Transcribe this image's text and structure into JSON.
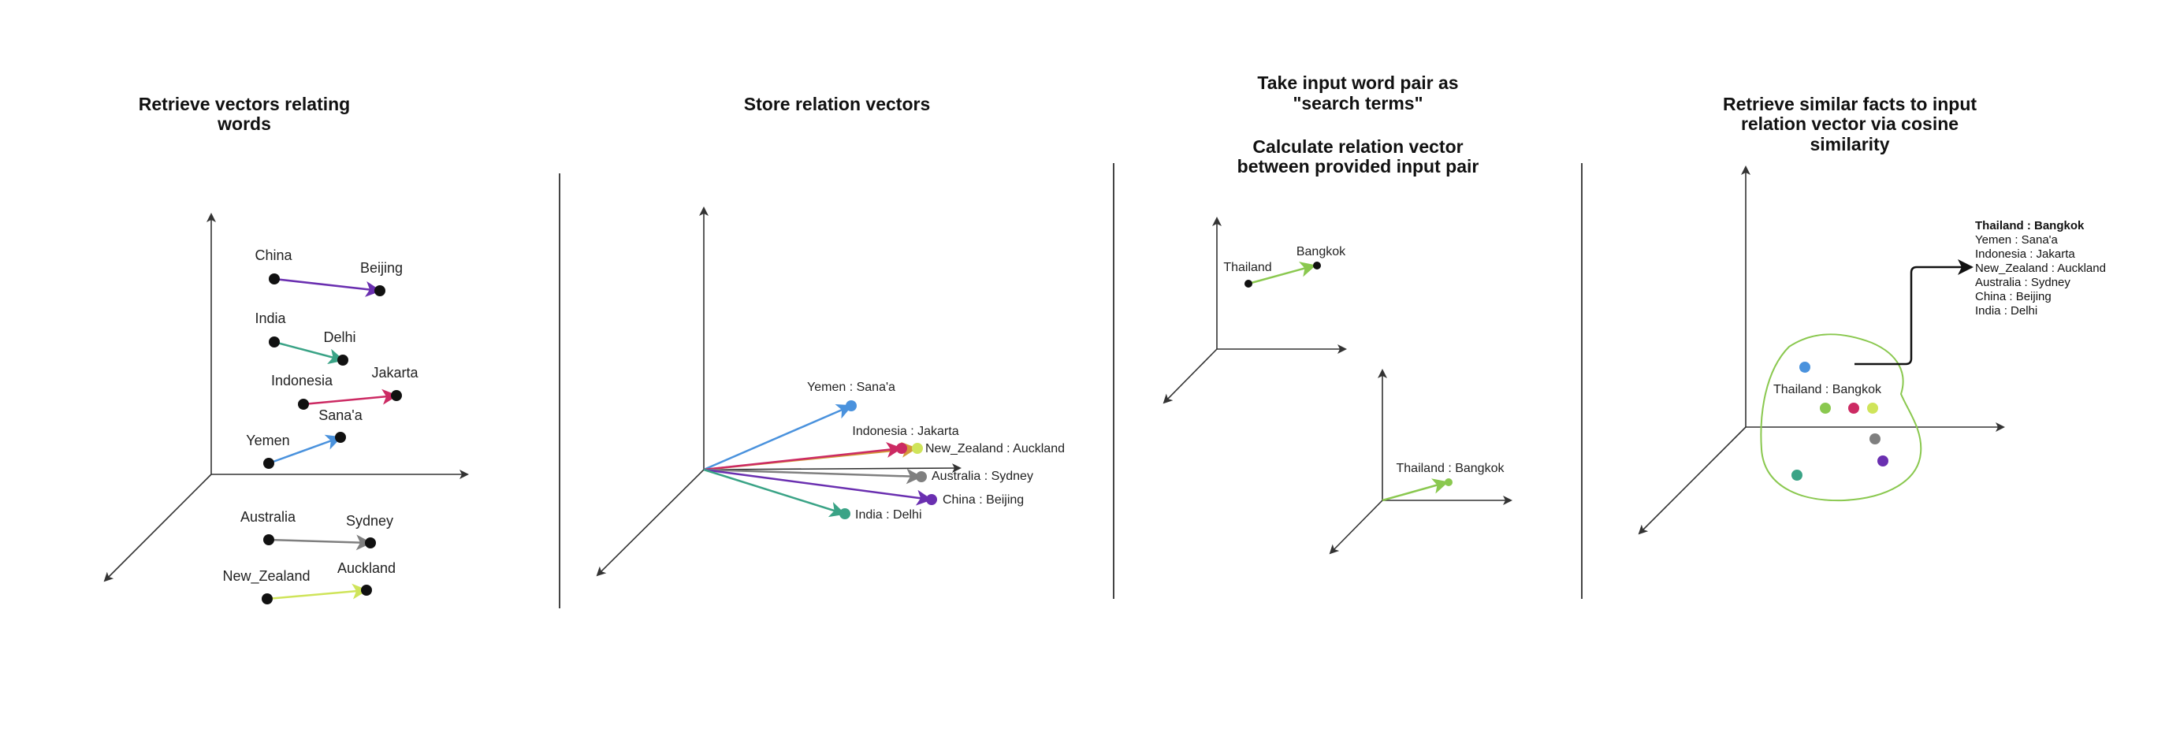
{
  "panels": [
    {
      "title_lines": [
        "Retrieve vectors relating",
        "words"
      ],
      "pairs": [
        {
          "from": "China",
          "to": "Beijing",
          "color": "#6a2fb0"
        },
        {
          "from": "India",
          "to": "Delhi",
          "color": "#3aa386"
        },
        {
          "from": "Indonesia",
          "to": "Jakarta",
          "color": "#cc2a63"
        },
        {
          "from": "Yemen",
          "to": "Sana'a",
          "color": "#4a92dd"
        },
        {
          "from": "Australia",
          "to": "Sydney",
          "color": "#7f7f7f"
        },
        {
          "from": "New_Zealand",
          "to": "Auckland",
          "color": "#cfe45a"
        }
      ]
    },
    {
      "title_lines": [
        "Store relation vectors"
      ],
      "vectors": [
        {
          "label": "Yemen : Sana'a",
          "color": "#4a92dd"
        },
        {
          "label": "Indonesia : Jakarta",
          "color": "#cc2a63"
        },
        {
          "label": "New_Zealand : Auckland",
          "color": "#cfe45a"
        },
        {
          "label": "Australia : Sydney",
          "color": "#7f7f7f"
        },
        {
          "label": "China : Beijing",
          "color": "#6a2fb0"
        },
        {
          "label": "India : Delhi",
          "color": "#3aa386"
        }
      ]
    },
    {
      "title_lines": [
        "Take input word pair as",
        "\"search terms\""
      ],
      "subtitle_lines": [
        "Calculate relation vector",
        "between provided input pair"
      ],
      "input_from": "Thailand",
      "input_to": "Bangkok",
      "relation_label": "Thailand : Bangkok",
      "color": "#8ac84f"
    },
    {
      "title_lines": [
        "Retrieve similar facts to input",
        "relation vector via cosine",
        "similarity"
      ],
      "query_label": "Thailand : Bangkok",
      "region_color": "#8ac84f",
      "results_header": "Thailand : Bangkok",
      "results": [
        "Yemen : Sana'a",
        "Indonesia : Jakarta",
        "New_Zealand : Auckland",
        "Australia : Sydney",
        "China : Beijing",
        "India : Delhi"
      ]
    }
  ]
}
